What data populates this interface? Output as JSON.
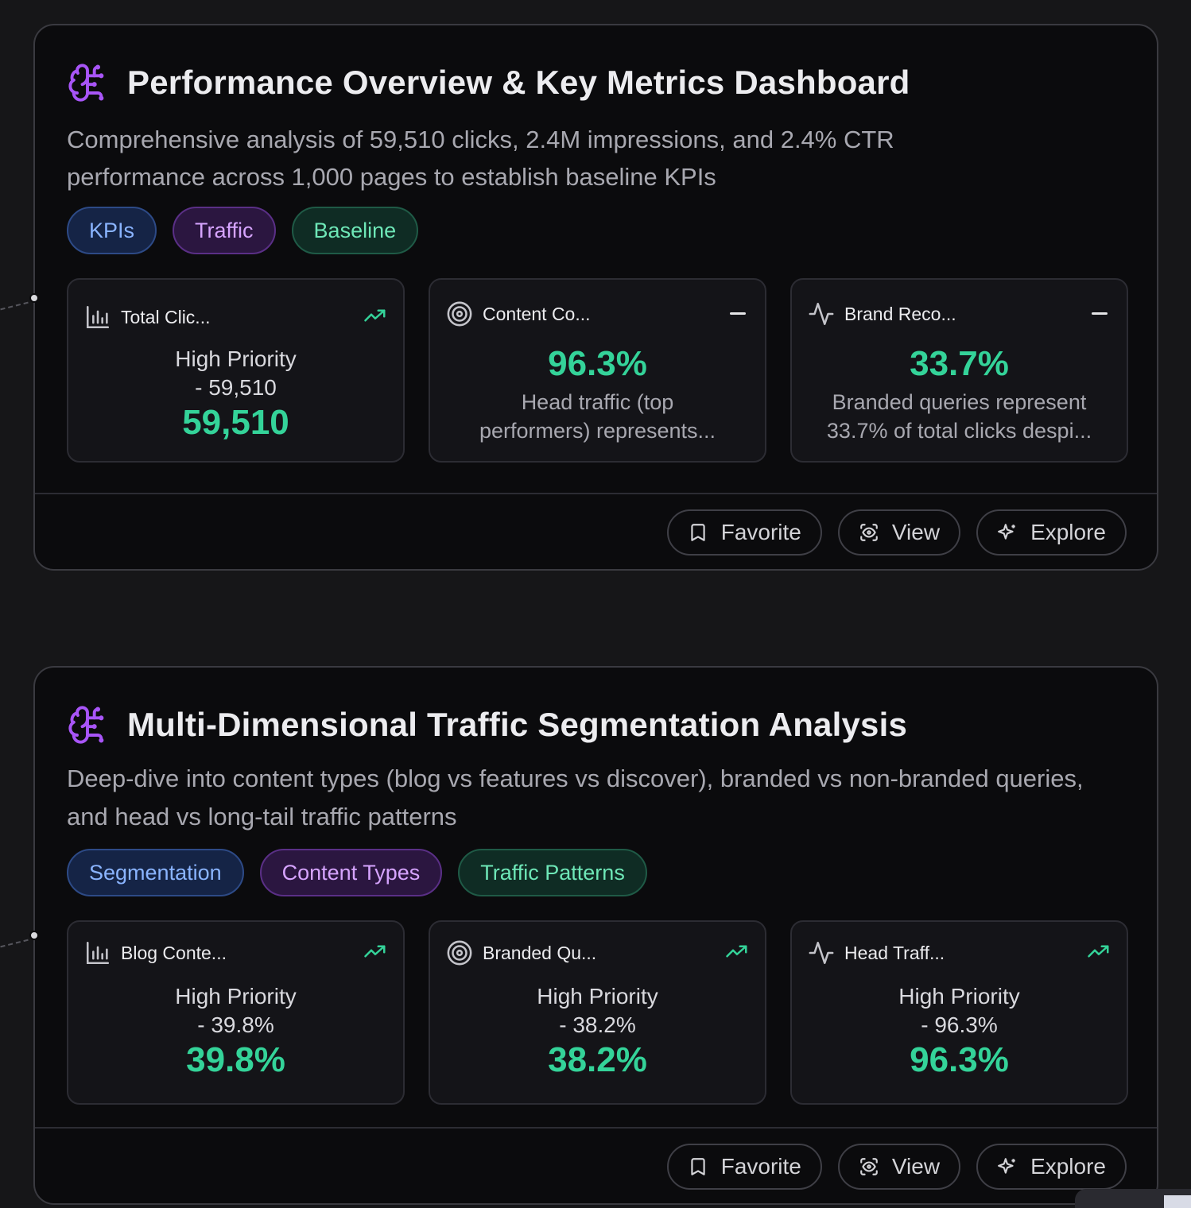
{
  "colors": {
    "accent_purple": "#a855f7",
    "value_green": "#34d399",
    "tag_blue": "#8ab4ff",
    "tag_purple": "#d6a4ff",
    "tag_green": "#6ee7b7"
  },
  "cards": [
    {
      "icon": "brain-circuit-icon",
      "title": "Performance Overview & Key Metrics Dashboard",
      "description": "Comprehensive analysis of 59,510 clicks, 2.4M impressions, and 2.4% CTR performance across 1,000 pages to establish baseline KPIs",
      "tags": [
        "KPIs",
        "Traffic",
        "Baseline"
      ],
      "metrics": [
        {
          "icon": "bar-chart-icon",
          "label": "Total Clic...",
          "trend": "trending-up-icon",
          "line1": "High Priority",
          "line2": "- 59,510",
          "value": "59,510"
        },
        {
          "icon": "target-icon",
          "label": "Content Co...",
          "trend": "minus-icon",
          "value": "96.3%",
          "line1": "Head traffic (top",
          "line2": "performers) represents..."
        },
        {
          "icon": "activity-icon",
          "label": "Brand Reco...",
          "trend": "minus-icon",
          "value": "33.7%",
          "line1": "Branded queries represent",
          "line2": "33.7% of total clicks despi..."
        }
      ],
      "actions": {
        "favorite": "Favorite",
        "view": "View",
        "explore": "Explore"
      }
    },
    {
      "icon": "brain-circuit-icon",
      "title": "Multi-Dimensional Traffic Segmentation Analysis",
      "description": "Deep-dive into content types (blog vs features vs discover), branded vs non-branded queries, and head vs long-tail traffic patterns",
      "tags": [
        "Segmentation",
        "Content Types",
        "Traffic Patterns"
      ],
      "metrics": [
        {
          "icon": "bar-chart-icon",
          "label": "Blog Conte...",
          "trend": "trending-up-icon",
          "line1": "High Priority",
          "line2": "- 39.8%",
          "value": "39.8%"
        },
        {
          "icon": "target-icon",
          "label": "Branded Qu...",
          "trend": "trending-up-icon",
          "line1": "High Priority",
          "line2": "- 38.2%",
          "value": "38.2%"
        },
        {
          "icon": "activity-icon",
          "label": "Head Traff...",
          "trend": "trending-up-icon",
          "line1": "High Priority",
          "line2": "- 96.3%",
          "value": "96.3%"
        }
      ],
      "actions": {
        "favorite": "Favorite",
        "view": "View",
        "explore": "Explore"
      }
    }
  ]
}
